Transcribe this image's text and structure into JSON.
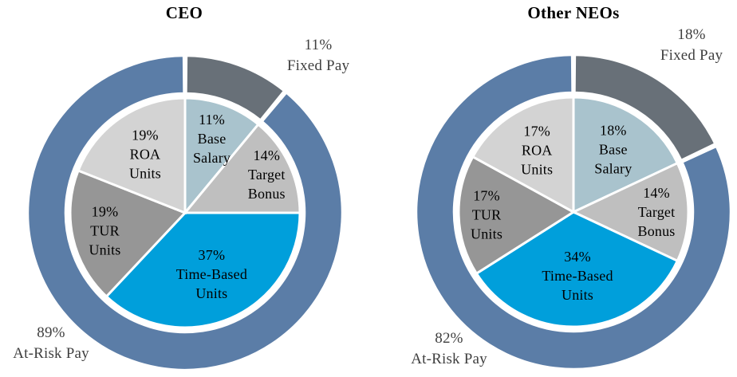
{
  "style": {
    "background": "#FFFFFF",
    "separator_color": "#FFFFFF",
    "title_color": "#000000",
    "inner_label_color": "#000000",
    "outer_label_color": "#3F3F3F"
  },
  "chart_data": [
    {
      "type": "pie",
      "variant": "pie-with-donut-ring",
      "title": "CEO",
      "legend": "none",
      "start_angle_deg": 0,
      "direction": "clockwise",
      "outer_ring": {
        "segments": [
          {
            "name": "Fixed Pay",
            "pct": 11,
            "color": "#687078",
            "label_lines": [
              "11%",
              "Fixed Pay"
            ],
            "label_anchor": "top-right"
          },
          {
            "name": "At-Risk Pay",
            "pct": 89,
            "color": "#5B7DA7",
            "label_lines": [
              "89%",
              "At-Risk Pay"
            ],
            "label_anchor": "bottom-left"
          }
        ]
      },
      "slices": [
        {
          "name": "Base Salary",
          "pct": 11,
          "color": "#A9C3CD",
          "label_lines": [
            "11%",
            "Base",
            "Salary"
          ],
          "label_r": 99
        },
        {
          "name": "Target Bonus",
          "pct": 14,
          "color": "#BFBFBF",
          "label_lines": [
            "14%",
            "Target",
            "Bonus"
          ],
          "label_r": 113
        },
        {
          "name": "Time-Based Units",
          "pct": 37,
          "color": "#009FDB",
          "label_lines": [
            "37%",
            "Time-Based",
            "Units"
          ],
          "label_r": 84
        },
        {
          "name": "TUR Units",
          "pct": 19,
          "color": "#969696",
          "label_lines": [
            "19%",
            "TUR",
            "Units"
          ],
          "label_r": 103
        },
        {
          "name": "ROA Units",
          "pct": 19,
          "color": "#D3D3D3",
          "label_lines": [
            "19%",
            "ROA",
            "Units"
          ],
          "label_r": 89
        }
      ]
    },
    {
      "type": "pie",
      "variant": "pie-with-donut-ring",
      "title": "Other NEOs",
      "legend": "none",
      "start_angle_deg": 0,
      "direction": "clockwise",
      "outer_ring": {
        "segments": [
          {
            "name": "Fixed Pay",
            "pct": 18,
            "color": "#687078",
            "label_lines": [
              "18%",
              "Fixed Pay"
            ],
            "label_anchor": "top-right"
          },
          {
            "name": "At-Risk Pay",
            "pct": 82,
            "color": "#5B7DA7",
            "label_lines": [
              "82%",
              "At-Risk Pay"
            ],
            "label_anchor": "bottom-left"
          }
        ]
      },
      "slices": [
        {
          "name": "Base Salary",
          "pct": 18,
          "color": "#A9C3CD",
          "label_lines": [
            "18%",
            "Base",
            "Salary"
          ],
          "label_r": 93
        },
        {
          "name": "Target Bonus",
          "pct": 14,
          "color": "#BFBFBF",
          "label_lines": [
            "14%",
            "Target",
            "Bonus"
          ],
          "label_r": 104
        },
        {
          "name": "Time-Based Units",
          "pct": 34,
          "color": "#009FDB",
          "label_lines": [
            "34%",
            "Time-Based",
            "Units"
          ],
          "label_r": 80
        },
        {
          "name": "TUR Units",
          "pct": 17,
          "color": "#969696",
          "label_lines": [
            "17%",
            "TUR",
            "Units"
          ],
          "label_r": 109
        },
        {
          "name": "ROA Units",
          "pct": 17,
          "color": "#D3D3D3",
          "label_lines": [
            "17%",
            "ROA",
            "Units"
          ],
          "label_r": 90
        }
      ]
    }
  ]
}
